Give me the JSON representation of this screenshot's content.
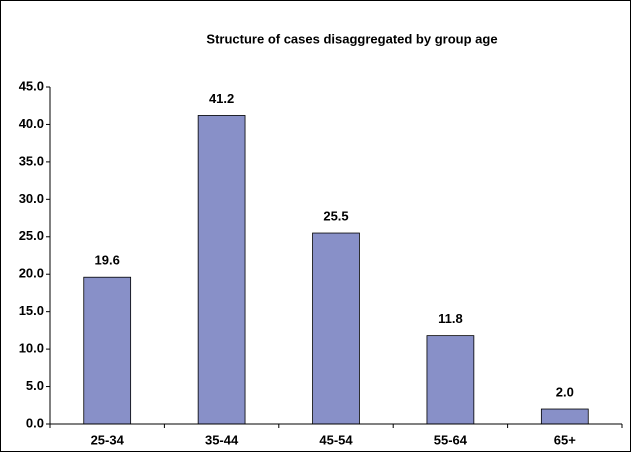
{
  "chart_data": {
    "type": "bar",
    "title": "Structure of cases disaggregated by group age",
    "categories": [
      "25-34",
      "35-44",
      "45-54",
      "55-64",
      "65+"
    ],
    "values": [
      19.6,
      41.2,
      25.5,
      11.8,
      2.0
    ],
    "value_labels": [
      "19.6",
      "41.2",
      "25.5",
      "11.8",
      "2.0"
    ],
    "color": "#8890c8",
    "ylim": [
      0,
      45
    ],
    "yticks": [
      {
        "value": 0,
        "label": "0.0"
      },
      {
        "value": 5,
        "label": "5.0"
      },
      {
        "value": 10,
        "label": "10.0"
      },
      {
        "value": 15,
        "label": "15.0"
      },
      {
        "value": 20,
        "label": "20.0"
      },
      {
        "value": 25,
        "label": "25.0"
      },
      {
        "value": 30,
        "label": "30.0"
      },
      {
        "value": 35,
        "label": "35.0"
      },
      {
        "value": 40,
        "label": "40.0"
      },
      {
        "value": 45,
        "label": "45.0"
      }
    ],
    "grid": false
  }
}
